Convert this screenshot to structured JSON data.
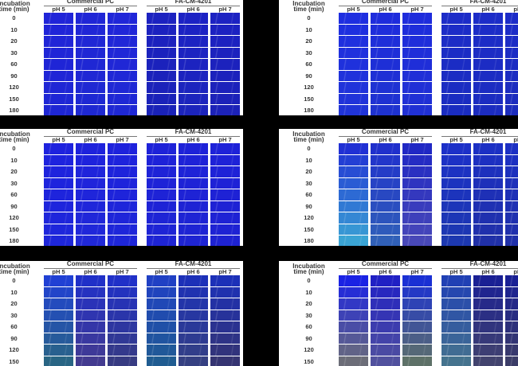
{
  "labels": {
    "time_header_1": "Incubation",
    "time_header_2": "time (min)",
    "group_1": "Commercial PC",
    "group_2": "FA-CM-4201",
    "ph": [
      "pH 5",
      "pH 6",
      "pH 7"
    ],
    "times": [
      "0",
      "10",
      "20",
      "30",
      "60",
      "90",
      "120",
      "150",
      "180"
    ]
  },
  "panels": [
    {
      "name": "panel-top-left",
      "columns": [
        [
          "#2024d8",
          "#1e26d4"
        ],
        [
          "#2026d6",
          "#1e28d2"
        ],
        [
          "#2026d8",
          "#1f28d4"
        ],
        [
          "#1c22c0",
          "#1a22b8"
        ],
        [
          "#1c22c4",
          "#1c24bc"
        ],
        [
          "#1c22c2",
          "#1c22b8"
        ]
      ]
    },
    {
      "name": "panel-top-right",
      "columns": [
        [
          "#1e2ee0",
          "#2034d8"
        ],
        [
          "#1e2cdc",
          "#1e32d0"
        ],
        [
          "#1e2cdc",
          "#2030d4"
        ],
        [
          "#1c2cc8",
          "#1a2cc0"
        ],
        [
          "#1c2cc8",
          "#1c2cc0"
        ],
        [
          "#1c2cc8",
          "#1c2cbc"
        ]
      ]
    },
    {
      "name": "panel-middle-left",
      "columns": [
        [
          "#1e22de",
          "#1e26da"
        ],
        [
          "#1e22dc",
          "#2028d8"
        ],
        [
          "#1e22dc",
          "#1e26d8"
        ],
        [
          "#1e22d8",
          "#1e24d4"
        ],
        [
          "#1e22d8",
          "#1e24d2"
        ],
        [
          "#1e22d8",
          "#1e22d2"
        ]
      ]
    },
    {
      "name": "panel-middle-right",
      "columns": [
        [
          "#2030d4",
          "#3aa4d4"
        ],
        [
          "#2030cc",
          "#3060b8"
        ],
        [
          "#2028c4",
          "#4848b8"
        ],
        [
          "#1c30c8",
          "#1c38b0"
        ],
        [
          "#1c30c4",
          "#2030a8"
        ],
        [
          "#1c30c4",
          "#2030a8"
        ]
      ]
    },
    {
      "name": "panel-bottom-left",
      "columns": [
        [
          "#2040d4",
          "#2a6a78"
        ],
        [
          "#2030c8",
          "#483c88"
        ],
        [
          "#2030c8",
          "#3a3c78"
        ],
        [
          "#2040c4",
          "#20608a"
        ],
        [
          "#1c30b8",
          "#38427a"
        ],
        [
          "#1c30b8",
          "#383468"
        ]
      ]
    },
    {
      "name": "panel-bottom-right",
      "columns": [
        [
          "#1a22e4",
          "#787868"
        ],
        [
          "#2020c4",
          "#585898"
        ],
        [
          "#1a30d4",
          "#687a58"
        ],
        [
          "#2040b4",
          "#4a7a88"
        ],
        [
          "#1a2094",
          "#484868"
        ],
        [
          "#1a2094",
          "#404060"
        ]
      ]
    }
  ]
}
